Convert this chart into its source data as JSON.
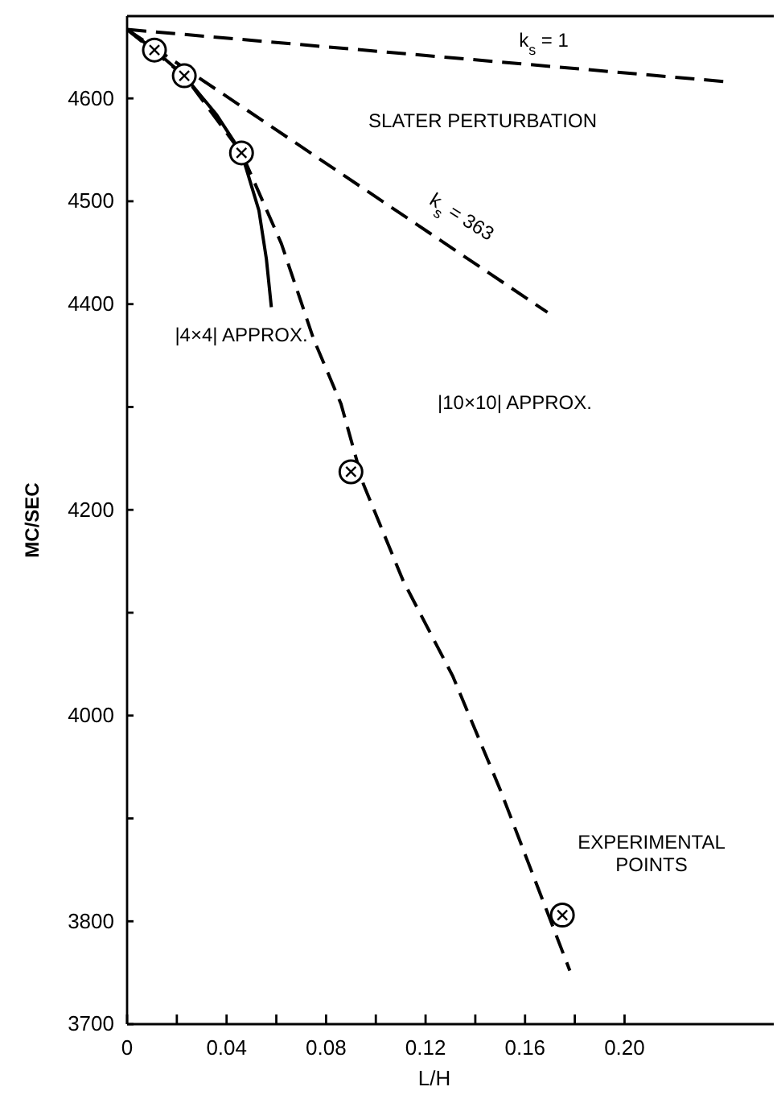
{
  "chart_data": {
    "type": "line",
    "xlabel": "L/H",
    "ylabel": "MC/SEC",
    "xlim": [
      0,
      0.26
    ],
    "ylim": [
      3700,
      4680
    ],
    "xticks": [
      0,
      {
        "value": 0.02,
        "label": null
      },
      {
        "value": 0.04,
        "label": "0.04"
      },
      {
        "value": 0.06,
        "label": null
      },
      {
        "value": 0.08,
        "label": "0.08"
      },
      {
        "value": 0.1,
        "label": null
      },
      {
        "value": 0.12,
        "label": "0.12"
      },
      {
        "value": 0.14,
        "label": null
      },
      {
        "value": 0.16,
        "label": "0.16"
      },
      {
        "value": 0.18,
        "label": null
      },
      {
        "value": 0.2,
        "label": "0.20"
      }
    ],
    "yticks": [
      3700,
      3800,
      {
        "value": 3900,
        "label": null
      },
      4000,
      {
        "value": 4100,
        "label": null
      },
      4200,
      {
        "value": 4300,
        "label": null
      },
      4400,
      4500,
      4600
    ],
    "grid": false,
    "series": [
      {
        "line_style": "dashed",
        "color": "#000000",
        "x": [
          0,
          0.242
        ],
        "values": [
          4667,
          4616
        ]
      },
      {
        "line_style": "dashed",
        "color": "#000000",
        "x": [
          0,
          0.169
        ],
        "values": [
          4667,
          4392
        ]
      },
      {
        "line_style": "solid",
        "color": "#000000",
        "x": [
          0,
          0.011,
          0.023,
          0.036,
          0.046,
          0.053,
          0.056,
          0.058
        ],
        "values": [
          4667,
          4647,
          4622,
          4584,
          4547,
          4491,
          4444,
          4397
        ]
      },
      {
        "line_style": "dashed",
        "color": "#000000",
        "x": [
          0,
          0.023,
          0.046,
          0.062,
          0.075,
          0.086,
          0.095,
          0.111,
          0.131,
          0.15,
          0.178
        ],
        "values": [
          4667,
          4622,
          4547,
          4459,
          4366,
          4303,
          4225,
          4131,
          4038,
          3928,
          3752
        ]
      },
      {
        "type": "scatter",
        "marker": "circle",
        "color": "#000000",
        "x": [
          0.011,
          0.023,
          0.046,
          0.09,
          0.175
        ],
        "values": [
          4647,
          4622,
          4547,
          4237,
          3806
        ]
      }
    ],
    "annotations": [
      "k$_{s}$ = 1",
      "SLATER PERTURBATION",
      "k$_{s}$ = 363",
      "|4×4| APPROX.",
      "|10×10| APPROX.",
      "EXPERIMENTAL POINTS"
    ]
  }
}
